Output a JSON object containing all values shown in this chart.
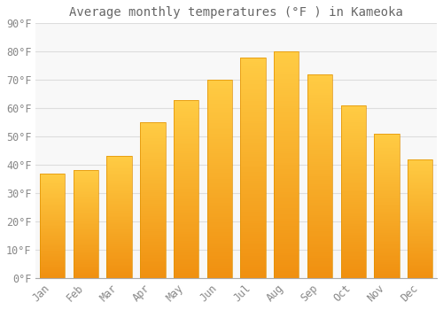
{
  "title": "Average monthly temperatures (°F ) in Kameoka",
  "months": [
    "Jan",
    "Feb",
    "Mar",
    "Apr",
    "May",
    "Jun",
    "Jul",
    "Aug",
    "Sep",
    "Oct",
    "Nov",
    "Dec"
  ],
  "values": [
    37,
    38,
    43,
    55,
    63,
    70,
    78,
    80,
    72,
    61,
    51,
    42
  ],
  "bar_color_top": "#FFCC44",
  "bar_color_bottom": "#F09010",
  "bar_edge_color": "#E09000",
  "background_color": "#FFFFFF",
  "plot_bg_color": "#F8F8F8",
  "grid_color": "#DDDDDD",
  "text_color": "#888888",
  "ylim": [
    0,
    90
  ],
  "yticks": [
    0,
    10,
    20,
    30,
    40,
    50,
    60,
    70,
    80,
    90
  ],
  "title_fontsize": 10,
  "tick_fontsize": 8.5,
  "font_family": "monospace"
}
